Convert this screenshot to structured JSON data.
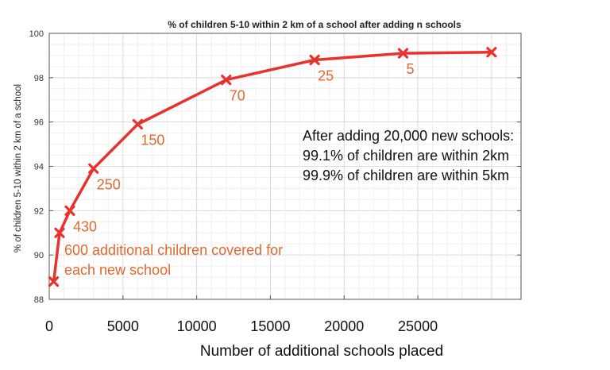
{
  "chart_data": {
    "type": "line",
    "title": "% of children 5-10 within 2 km of a school after adding n schools",
    "xlabel": "Number of additional schools placed",
    "ylabel": "% of children 5-10 within 2 km of a school",
    "xlim": [
      0,
      32000
    ],
    "ylim": [
      88,
      100
    ],
    "grid": true,
    "x_ticks": [
      0,
      5000,
      10000,
      15000,
      20000,
      25000
    ],
    "x_tick_labels": [
      "0",
      "5000",
      "10000",
      "15000",
      "20000",
      "25000"
    ],
    "y_ticks": [
      88,
      90,
      92,
      94,
      96,
      98,
      100
    ],
    "y_tick_labels": [
      "88",
      "90",
      "92",
      "94",
      "96",
      "98",
      "100"
    ],
    "series": [
      {
        "color": "#e8322b",
        "marker": "x",
        "x": [
          300,
          700,
          1400,
          3000,
          6000,
          12000,
          18000,
          24000,
          30000
        ],
        "y": [
          88.8,
          91.0,
          92.0,
          93.9,
          95.9,
          97.9,
          98.8,
          99.1,
          99.15
        ]
      }
    ],
    "point_labels": [
      {
        "x": 1400,
        "y": 92.0,
        "text": "430"
      },
      {
        "x": 3000,
        "y": 93.9,
        "text": "250"
      },
      {
        "x": 6000,
        "y": 95.9,
        "text": "150"
      },
      {
        "x": 12000,
        "y": 97.9,
        "text": "70"
      },
      {
        "x": 18000,
        "y": 98.8,
        "text": "25"
      },
      {
        "x": 24000,
        "y": 99.1,
        "text": "5"
      }
    ],
    "annotations": {
      "orange_note_line1": "600 additional children covered for",
      "orange_note_line2": "each new school",
      "black_note_line1": "After adding 20,000 new schools:",
      "black_note_line2": "99.1% of children are within 2km",
      "black_note_line3": "99.9% of children are within 5km"
    },
    "colors": {
      "line": "#e8322b",
      "label": "#e0692f",
      "grid": "#e2e2e2",
      "axes": "#555555"
    }
  }
}
